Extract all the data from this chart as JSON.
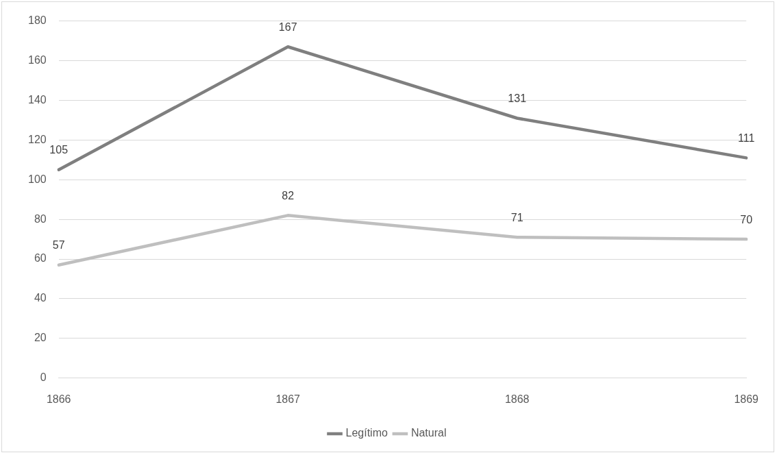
{
  "chart_data": {
    "type": "line",
    "categories": [
      "1866",
      "1867",
      "1868",
      "1869"
    ],
    "series": [
      {
        "name": "Legítimo",
        "color": "#7f7f7f",
        "values": [
          105,
          167,
          131,
          111
        ]
      },
      {
        "name": "Natural",
        "color": "#bfbfbf",
        "values": [
          57,
          82,
          71,
          70
        ]
      }
    ],
    "ylim": [
      0,
      180
    ],
    "yticks": [
      0,
      20,
      40,
      60,
      80,
      100,
      120,
      140,
      160,
      180
    ],
    "grid": "y",
    "legend": "bottom",
    "data_labels": true,
    "marker": "none",
    "line_style": "solid"
  }
}
